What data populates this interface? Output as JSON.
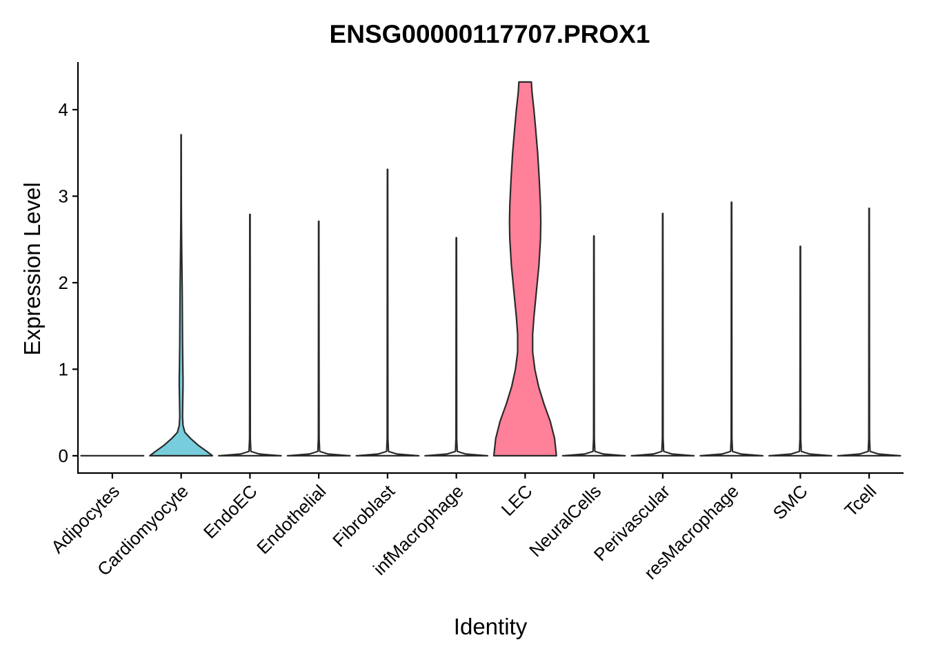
{
  "chart_data": {
    "type": "violin",
    "title": "ENSG00000117707.PROX1",
    "xlabel": "Identity",
    "ylabel": "Expression Level",
    "ylim": [
      -0.2,
      4.55
    ],
    "yticks": [
      0,
      1,
      2,
      3,
      4
    ],
    "grid": false,
    "legend": "none",
    "categories": [
      "Adipocytes",
      "Cardiomyocyte",
      "EndoEC",
      "Endothelial",
      "Fibroblast",
      "infMacrophage",
      "LEC",
      "NeuralCells",
      "Perivascular",
      "resMacrophage",
      "SMC",
      "Tcell"
    ],
    "series": [
      {
        "category": "Adipocytes",
        "color": "#ffffff",
        "profile": [
          [
            0,
            1.0
          ]
        ]
      },
      {
        "category": "Cardiomyocyte",
        "color": "#77CDDC",
        "profile": [
          [
            0,
            1.0
          ],
          [
            0.05,
            0.82
          ],
          [
            0.12,
            0.55
          ],
          [
            0.2,
            0.3
          ],
          [
            0.27,
            0.12
          ],
          [
            0.35,
            0.06
          ],
          [
            0.45,
            0.045
          ],
          [
            0.6,
            0.05
          ],
          [
            0.8,
            0.06
          ],
          [
            0.9,
            0.06
          ],
          [
            1.0,
            0.055
          ],
          [
            1.3,
            0.045
          ],
          [
            1.6,
            0.04
          ],
          [
            1.9,
            0.035
          ],
          [
            2.1,
            0.028
          ],
          [
            2.4,
            0.018
          ],
          [
            2.7,
            0.01
          ],
          [
            3.0,
            0.006
          ],
          [
            3.71,
            0.004
          ]
        ]
      },
      {
        "category": "EndoEC",
        "color": "#ffffff",
        "profile": [
          [
            0,
            1.0
          ],
          [
            0.02,
            0.3
          ],
          [
            0.05,
            0.03
          ],
          [
            0.2,
            0.012
          ],
          [
            2.79,
            0.006
          ]
        ]
      },
      {
        "category": "Endothelial",
        "color": "#ffffff",
        "profile": [
          [
            0,
            1.0
          ],
          [
            0.02,
            0.3
          ],
          [
            0.05,
            0.03
          ],
          [
            0.2,
            0.012
          ],
          [
            2.71,
            0.006
          ]
        ]
      },
      {
        "category": "Fibroblast",
        "color": "#ffffff",
        "profile": [
          [
            0,
            1.0
          ],
          [
            0.02,
            0.3
          ],
          [
            0.05,
            0.03
          ],
          [
            0.2,
            0.012
          ],
          [
            3.31,
            0.006
          ]
        ]
      },
      {
        "category": "infMacrophage",
        "color": "#ffffff",
        "profile": [
          [
            0,
            1.0
          ],
          [
            0.02,
            0.3
          ],
          [
            0.05,
            0.03
          ],
          [
            0.2,
            0.012
          ],
          [
            2.52,
            0.006
          ]
        ]
      },
      {
        "category": "LEC",
        "color": "#FE8099",
        "profile": [
          [
            0,
            1.0
          ],
          [
            0.2,
            0.94
          ],
          [
            0.4,
            0.8
          ],
          [
            0.6,
            0.6
          ],
          [
            0.8,
            0.43
          ],
          [
            1.0,
            0.31
          ],
          [
            1.2,
            0.24
          ],
          [
            1.4,
            0.24
          ],
          [
            1.6,
            0.28
          ],
          [
            1.9,
            0.36
          ],
          [
            2.2,
            0.44
          ],
          [
            2.5,
            0.49
          ],
          [
            2.7,
            0.5
          ],
          [
            2.9,
            0.49
          ],
          [
            3.2,
            0.45
          ],
          [
            3.5,
            0.4
          ],
          [
            3.8,
            0.33
          ],
          [
            4.0,
            0.28
          ],
          [
            4.2,
            0.22
          ],
          [
            4.32,
            0.2
          ]
        ]
      },
      {
        "category": "NeuralCells",
        "color": "#ffffff",
        "profile": [
          [
            0,
            1.0
          ],
          [
            0.02,
            0.3
          ],
          [
            0.05,
            0.03
          ],
          [
            0.2,
            0.012
          ],
          [
            2.54,
            0.006
          ]
        ]
      },
      {
        "category": "Perivascular",
        "color": "#ffffff",
        "profile": [
          [
            0,
            1.0
          ],
          [
            0.02,
            0.3
          ],
          [
            0.05,
            0.03
          ],
          [
            0.2,
            0.012
          ],
          [
            2.8,
            0.006
          ]
        ]
      },
      {
        "category": "resMacrophage",
        "color": "#ffffff",
        "profile": [
          [
            0,
            1.0
          ],
          [
            0.02,
            0.3
          ],
          [
            0.05,
            0.03
          ],
          [
            0.2,
            0.012
          ],
          [
            2.93,
            0.006
          ]
        ]
      },
      {
        "category": "SMC",
        "color": "#ffffff",
        "profile": [
          [
            0,
            1.0
          ],
          [
            0.02,
            0.3
          ],
          [
            0.05,
            0.03
          ],
          [
            0.2,
            0.012
          ],
          [
            2.42,
            0.006
          ]
        ]
      },
      {
        "category": "Tcell",
        "color": "#ffffff",
        "profile": [
          [
            0,
            1.0
          ],
          [
            0.02,
            0.3
          ],
          [
            0.05,
            0.03
          ],
          [
            0.2,
            0.012
          ],
          [
            2.86,
            0.006
          ]
        ]
      }
    ]
  }
}
